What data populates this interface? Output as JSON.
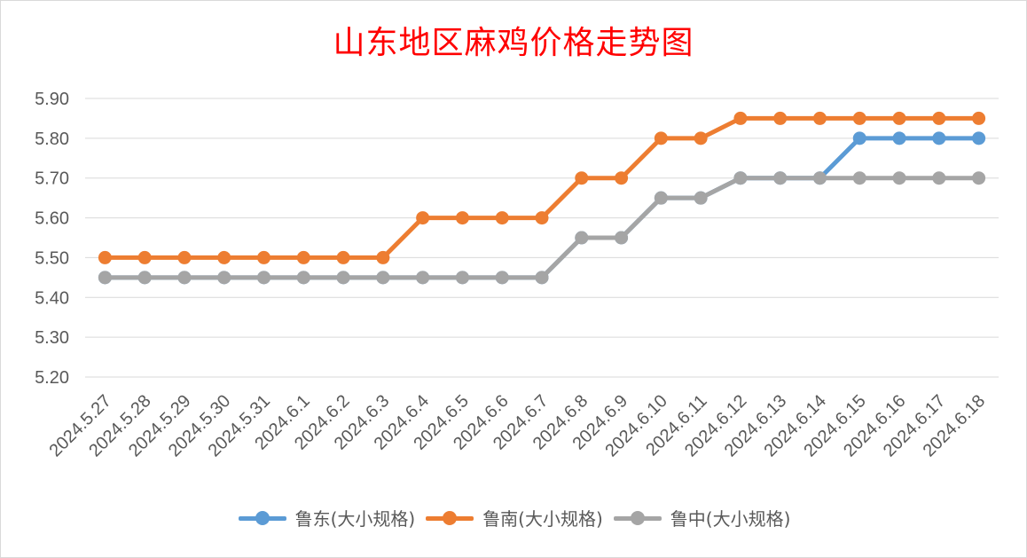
{
  "chart_data": {
    "type": "line",
    "title": "山东地区麻鸡价格走势图",
    "categories": [
      "2024.5.27",
      "2024.5.28",
      "2024.5.29",
      "2024.5.30",
      "2024.5.31",
      "2024.6.1",
      "2024.6.2",
      "2024.6.3",
      "2024.6.4",
      "2024.6.5",
      "2024.6.6",
      "2024.6.7",
      "2024.6.8",
      "2024.6.9",
      "2024.6.10",
      "2024.6.11",
      "2024.6.12",
      "2024.6.13",
      "2024.6.14",
      "2024.6.15",
      "2024.6.16",
      "2024.6.17",
      "2024.6.18"
    ],
    "ylim": [
      5.2,
      5.9
    ],
    "yticks": [
      "5.20",
      "5.30",
      "5.40",
      "5.50",
      "5.60",
      "5.70",
      "5.80",
      "5.90"
    ],
    "grid": true,
    "legend_position": "bottom",
    "series": [
      {
        "name": "鲁东(大小规格)",
        "color": "#5b9bd5",
        "values": [
          5.45,
          5.45,
          5.45,
          5.45,
          5.45,
          5.45,
          5.45,
          5.45,
          5.45,
          5.45,
          5.45,
          5.45,
          5.55,
          5.55,
          5.65,
          5.65,
          5.7,
          5.7,
          5.7,
          5.8,
          5.8,
          5.8,
          5.8
        ]
      },
      {
        "name": "鲁南(大小规格)",
        "color": "#ed7d31",
        "values": [
          5.5,
          5.5,
          5.5,
          5.5,
          5.5,
          5.5,
          5.5,
          5.5,
          5.6,
          5.6,
          5.6,
          5.6,
          5.7,
          5.7,
          5.8,
          5.8,
          5.85,
          5.85,
          5.85,
          5.85,
          5.85,
          5.85,
          5.85
        ]
      },
      {
        "name": "鲁中(大小规格)",
        "color": "#a5a5a5",
        "values": [
          5.45,
          5.45,
          5.45,
          5.45,
          5.45,
          5.45,
          5.45,
          5.45,
          5.45,
          5.45,
          5.45,
          5.45,
          5.55,
          5.55,
          5.65,
          5.65,
          5.7,
          5.7,
          5.7,
          5.7,
          5.7,
          5.7,
          5.7
        ]
      }
    ]
  }
}
